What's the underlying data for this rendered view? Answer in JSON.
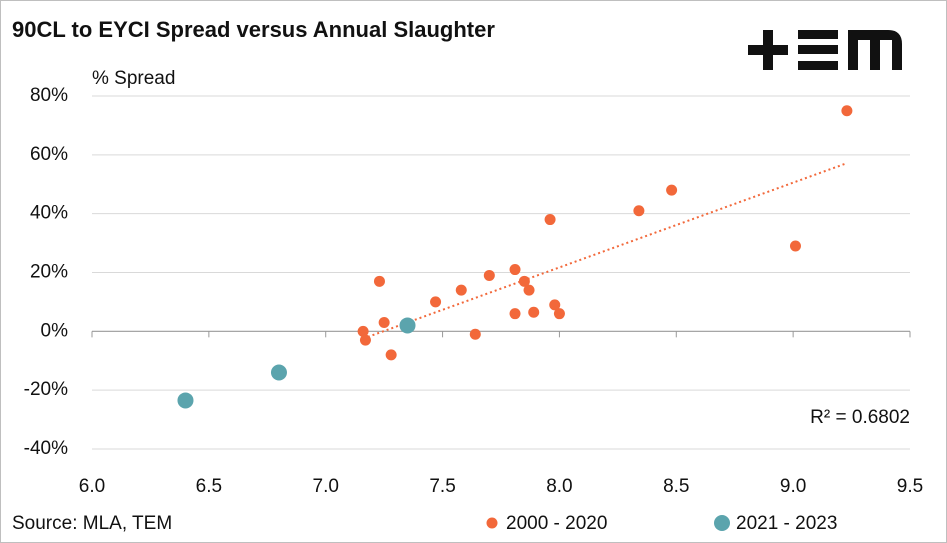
{
  "chart_data": {
    "type": "scatter",
    "title": "90CL to EYCI Spread versus Annual Slaughter",
    "y_label": "% Spread",
    "source": "Source: MLA, TEM",
    "annotation": "R² = 0.6802",
    "series": [
      {
        "name": "2000 - 2020",
        "color": "#f2683a",
        "x": [
          7.16,
          7.17,
          7.25,
          7.28,
          7.23,
          7.47,
          7.58,
          7.64,
          7.7,
          7.81,
          7.81,
          7.85,
          7.87,
          7.89,
          7.96,
          7.98,
          8.0,
          8.34,
          8.48,
          9.01,
          9.23
        ],
        "values": [
          0,
          -3,
          3,
          -8,
          17,
          10,
          14,
          -1,
          19,
          21,
          6,
          17,
          14,
          6.5,
          38,
          9,
          6,
          41,
          48,
          29,
          75
        ]
      },
      {
        "name": "2021 - 2023",
        "color": "#5ba4ad",
        "x": [
          6.4,
          6.8,
          7.35
        ],
        "values": [
          -23.5,
          -14,
          2
        ]
      }
    ],
    "xlim": [
      6.0,
      9.5
    ],
    "xticks": [
      {
        "value": 6,
        "label": "6.0"
      },
      {
        "value": 6.5,
        "label": "6.5"
      },
      {
        "value": 7,
        "label": "7.0"
      },
      {
        "value": 7.5,
        "label": "7.5"
      },
      {
        "value": 8,
        "label": "8.0"
      },
      {
        "value": 8.5,
        "label": "8.5"
      },
      {
        "value": 9,
        "label": "9.0"
      },
      {
        "value": 9.5,
        "label": "9.5"
      }
    ],
    "ylim": [
      -40,
      80
    ],
    "yticks": [
      {
        "value": -40,
        "label": "-40%"
      },
      {
        "value": -20,
        "label": "-20%"
      },
      {
        "value": 0,
        "label": "0%"
      },
      {
        "value": 20,
        "label": "20%"
      },
      {
        "value": 40,
        "label": "40%"
      },
      {
        "value": 60,
        "label": "60%"
      },
      {
        "value": 80,
        "label": "80%"
      }
    ],
    "grid": true,
    "trendline_series": 0
  }
}
